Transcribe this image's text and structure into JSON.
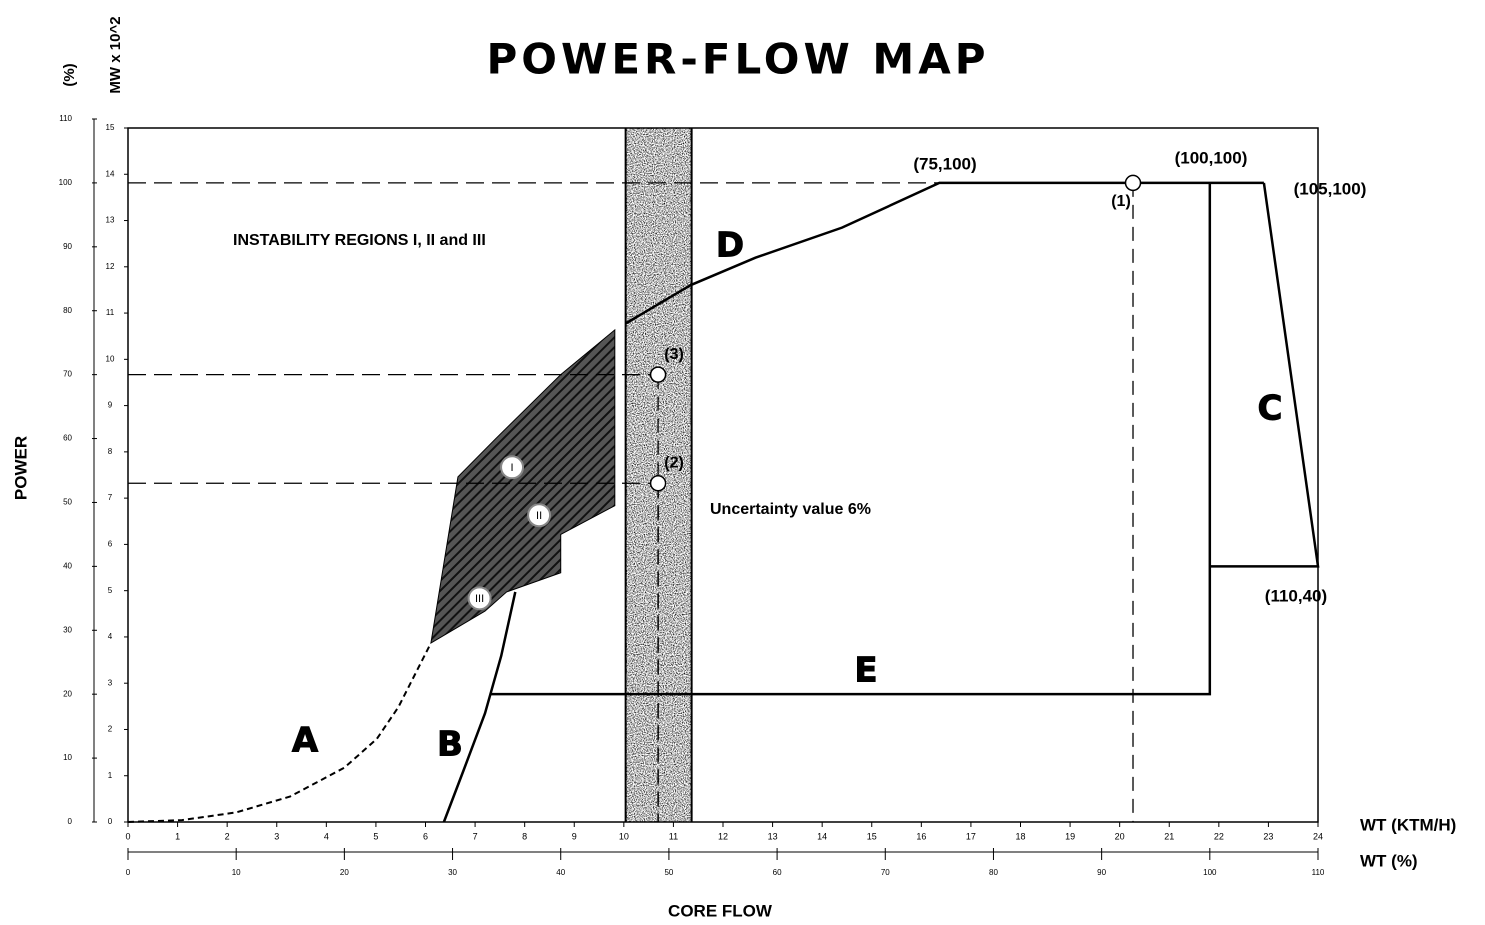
{
  "chart_data": {
    "type": "line",
    "title": "POWER-FLOW MAP",
    "y_label": "POWER",
    "y_unit_label": "(%)",
    "y2_label": "MW x 10^2",
    "x_label": "CORE FLOW",
    "x_unit_label": "WT (%)",
    "x2_label": "WT (KTM/H)",
    "xlim": [
      0,
      110
    ],
    "xticks": [
      0,
      10,
      20,
      30,
      40,
      50,
      60,
      70,
      80,
      90,
      100,
      110
    ],
    "x2lim": [
      0,
      24
    ],
    "x2ticks": [
      0,
      1,
      2,
      3,
      4,
      5,
      6,
      7,
      8,
      9,
      10,
      11,
      12,
      13,
      14,
      15,
      16,
      17,
      18,
      19,
      20,
      21,
      22,
      23,
      24
    ],
    "ylim": [
      0,
      110
    ],
    "yticks": [
      0,
      10,
      20,
      30,
      40,
      50,
      60,
      70,
      80,
      90,
      100,
      110
    ],
    "y2lim": [
      0,
      15
    ],
    "y2ticks": [
      0,
      1,
      2,
      3,
      4,
      5,
      6,
      7,
      8,
      9,
      10,
      11,
      12,
      13,
      14,
      15
    ],
    "series": [
      {
        "name": "A",
        "color": "#000000",
        "dashed": true,
        "x": [
          0,
          5,
          10,
          15,
          20,
          23,
          25,
          26.5,
          28
        ],
        "values": [
          0,
          0.3,
          1.5,
          4,
          8.5,
          13,
          18,
          23,
          28
        ]
      },
      {
        "name": "B",
        "color": "#000000",
        "dashed": false,
        "x": [
          29.2,
          31,
          33,
          34.5,
          35.8
        ],
        "values": [
          0,
          8,
          17,
          26,
          36
        ]
      },
      {
        "name": "C",
        "color": "#000000",
        "dashed": false,
        "x": [
          105,
          110,
          100
        ],
        "values": [
          100,
          40,
          40
        ]
      },
      {
        "name": "D",
        "color": "#000000",
        "dashed": false,
        "x": [
          46,
          52,
          58,
          66,
          75,
          105
        ],
        "values": [
          78,
          84,
          88.3,
          93,
          100,
          100
        ]
      },
      {
        "name": "E",
        "color": "#000000",
        "dashed": false,
        "x": [
          33.5,
          100,
          100
        ],
        "values": [
          20,
          20,
          100
        ]
      }
    ],
    "points": [
      {
        "label": "(1)",
        "x": 92.9,
        "y": 100
      },
      {
        "label": "(3)",
        "x": 49,
        "y": 70
      },
      {
        "label": "(2)",
        "x": 49,
        "y": 53
      }
    ],
    "instability_region": {
      "label": "INSTABILITY REGIONS I, II and III",
      "x": [
        28,
        30.5,
        34,
        40,
        45,
        45,
        40,
        40,
        35,
        33
      ],
      "values": [
        28,
        54,
        60,
        70,
        77,
        49.5,
        45,
        39,
        36,
        33
      ]
    },
    "regions": [
      {
        "label": "I",
        "x": 35.5,
        "y": 55.5
      },
      {
        "label": "II",
        "x": 38,
        "y": 48
      },
      {
        "label": "III",
        "x": 32.5,
        "y": 35
      }
    ],
    "uncertainty_band": {
      "label": "Uncertainty value 6%",
      "x": [
        46,
        52.1
      ]
    },
    "annotations": [
      "(75,100)",
      "(100,100)",
      "(105,100)",
      "(110,40)"
    ]
  }
}
